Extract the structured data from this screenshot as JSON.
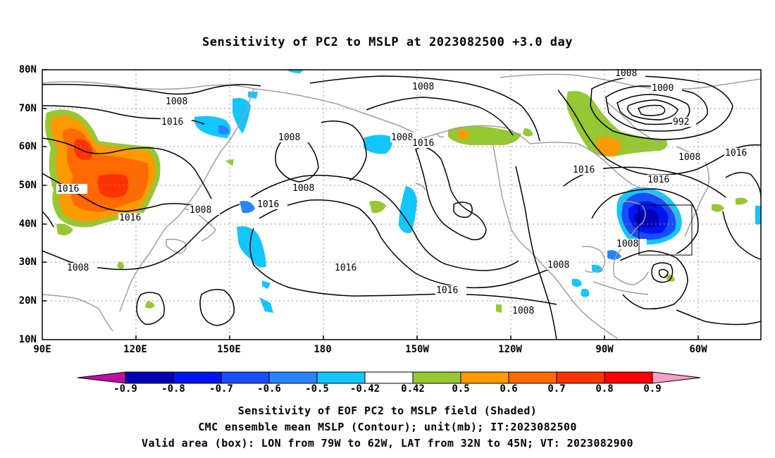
{
  "title": "Sensitivity of PC2 to MSLP at 2023082500 +3.0 day",
  "axes": {
    "lat_labels": [
      "80N",
      "70N",
      "60N",
      "50N",
      "40N",
      "30N",
      "20N",
      "10N"
    ],
    "lon_labels": [
      "90E",
      "120E",
      "150E",
      "180",
      "150W",
      "120W",
      "90W",
      "60W"
    ]
  },
  "colorbar": {
    "ticks": [
      "-0.9",
      "-0.8",
      "-0.7",
      "-0.6",
      "-0.5",
      "-0.42",
      "0.42",
      "0.5",
      "0.6",
      "0.7",
      "0.8",
      "0.9"
    ],
    "colors": [
      "#c00fa0",
      "#0000b4",
      "#0014f0",
      "#1a4cff",
      "#2a82ff",
      "#12c6ff",
      "#ffffff",
      "#96c832",
      "#ff9a00",
      "#ff6a00",
      "#ff3200",
      "#ff0000",
      "#f6a0c8"
    ]
  },
  "contour_labels": [
    "1008",
    "1000",
    "992",
    "1016"
  ],
  "valid_box": {
    "lon_from": "79W",
    "lon_to": "62W",
    "lat_from": "32N",
    "lat_to": "45N"
  },
  "captions": {
    "line1": "Sensitivity of EOF PC2 to MSLP field (Shaded)",
    "line2": "CMC ensemble mean MSLP (Contour); unit(mb); IT:2023082500",
    "line3": "Valid area (box): LON from 79W to 62W, LAT from 32N to 45N; VT: 2023082900"
  }
}
